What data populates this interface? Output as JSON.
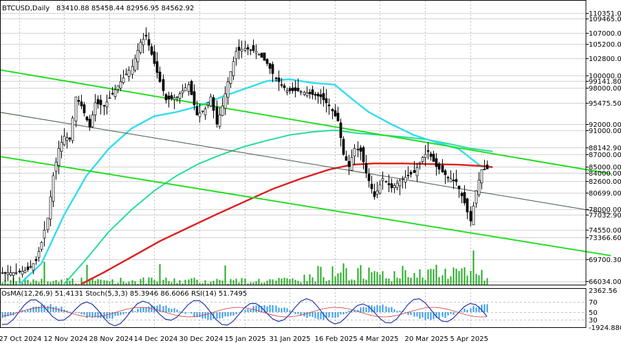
{
  "header": {
    "symbol": "BTCUSD,Daily",
    "ohlc": "83410.88 85458.44 82956.95 84562.92"
  },
  "indicator_header": "OsMA(12,26,9) 51.4131 Stoch(5,3,3) 85.3946 86.6066 RSI(14) 51.7495",
  "colors": {
    "background": "#ffffff",
    "candles": "#000000",
    "ema_fast": "#33ddee",
    "ema_mid": "#22dd99",
    "ema_slow": "#dd2222",
    "channel": "#22dd22",
    "volume": "#22aa22",
    "osma": "#3399ee",
    "grid": "#000000"
  },
  "chart_data": {
    "type": "candlestick",
    "y_ticks": [
      "110351.00",
      "109465.00",
      "107000.00",
      "105200.00",
      "102800.00",
      "100000.00",
      "99141.80",
      "98000.00",
      "95475.50",
      "92000.00",
      "91000.00",
      "88142.90",
      "87000.00",
      "85000.00",
      "84000.00",
      "82600.00",
      "80699.00",
      "78000.00",
      "77032.90",
      "74550.00",
      "73366.60",
      "69700.30",
      "66034.00"
    ],
    "y_tick_values": [
      110351,
      109465,
      107000,
      105200,
      102800,
      100000,
      99141.8,
      98000,
      95475.5,
      92000,
      91000,
      88142.9,
      87000,
      85000,
      84000,
      82600,
      80699,
      78000,
      77032.9,
      74550,
      73366.6,
      69700.3,
      66034
    ],
    "ylim": [
      65400,
      111900
    ],
    "x_ticks": [
      "27 Oct 2024",
      "12 Nov 2024",
      "28 Nov 2024",
      "14 Dec 2024",
      "30 Dec 2024",
      "15 Jan 2025",
      "31 Jan 2025",
      "16 Feb 2025",
      "4 Mar 2025",
      "20 Mar 2025",
      "5 Apr 2025"
    ],
    "x_tick_days": [
      0,
      16,
      32,
      48,
      64,
      80,
      96,
      112,
      128,
      144,
      160
    ],
    "channel_lines": [
      {
        "name": "channel-upper",
        "points": [
          [
            -10,
            101200
          ],
          [
            210,
            83800
          ]
        ]
      },
      {
        "name": "channel-lower",
        "points": [
          [
            -10,
            86900
          ],
          [
            210,
            70300
          ]
        ]
      },
      {
        "name": "trend-line",
        "points": [
          [
            -10,
            94200
          ],
          [
            210,
            77200
          ]
        ]
      }
    ],
    "ema_fast": [
      [
        0,
        65500
      ],
      [
        8,
        69000
      ],
      [
        16,
        77000
      ],
      [
        24,
        83500
      ],
      [
        32,
        88000
      ],
      [
        40,
        91300
      ],
      [
        48,
        93300
      ],
      [
        56,
        94000
      ],
      [
        64,
        95000
      ],
      [
        72,
        96500
      ],
      [
        80,
        97800
      ],
      [
        88,
        99100
      ],
      [
        96,
        99400
      ],
      [
        104,
        98800
      ],
      [
        112,
        98500
      ],
      [
        118,
        96200
      ],
      [
        124,
        94000
      ],
      [
        132,
        92000
      ],
      [
        140,
        90200
      ],
      [
        148,
        89000
      ],
      [
        156,
        87900
      ],
      [
        164,
        85000
      ],
      [
        168,
        84900
      ]
    ],
    "ema_mid": [
      [
        16,
        65600
      ],
      [
        24,
        69800
      ],
      [
        32,
        74300
      ],
      [
        40,
        77900
      ],
      [
        48,
        81000
      ],
      [
        56,
        83500
      ],
      [
        64,
        85500
      ],
      [
        72,
        87000
      ],
      [
        80,
        88300
      ],
      [
        88,
        89300
      ],
      [
        96,
        90200
      ],
      [
        104,
        90700
      ],
      [
        112,
        91000
      ],
      [
        120,
        90500
      ],
      [
        128,
        90200
      ],
      [
        136,
        89900
      ],
      [
        144,
        89500
      ],
      [
        152,
        88800
      ],
      [
        160,
        88000
      ],
      [
        168,
        87500
      ]
    ],
    "ema_slow": [
      [
        22,
        65600
      ],
      [
        30,
        67500
      ],
      [
        40,
        70100
      ],
      [
        50,
        72700
      ],
      [
        60,
        74900
      ],
      [
        70,
        77100
      ],
      [
        80,
        79200
      ],
      [
        90,
        81300
      ],
      [
        100,
        83000
      ],
      [
        110,
        84500
      ],
      [
        118,
        85300
      ],
      [
        126,
        85500
      ],
      [
        136,
        85500
      ],
      [
        146,
        85400
      ],
      [
        156,
        85300
      ],
      [
        164,
        85100
      ],
      [
        168,
        84900
      ]
    ],
    "indicator_levels": [
      "2362.56",
      "70",
      "50",
      "30",
      "-1924.8804"
    ],
    "indicator_level_values": [
      2362.56,
      70,
      50,
      30,
      -1924.8804
    ]
  }
}
